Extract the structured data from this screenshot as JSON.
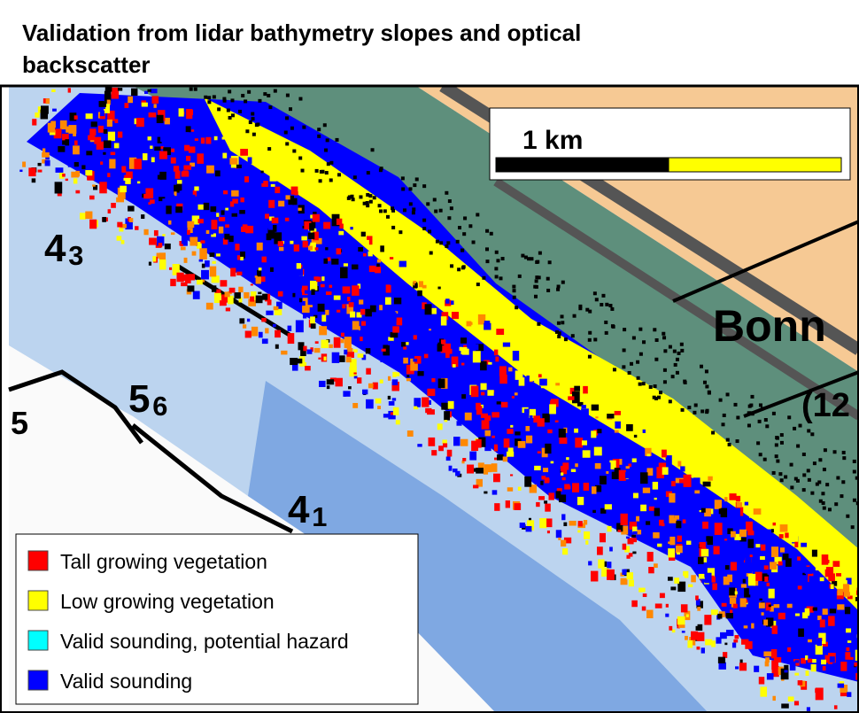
{
  "title": [
    "Validation from lidar bathymetry slopes and optical",
    "backscatter"
  ],
  "scale_bar": {
    "label": "1 km",
    "colors": [
      "#000000",
      "#ffff00"
    ]
  },
  "legend": [
    {
      "label": "Tall growing vegetation",
      "color": "#ff0000"
    },
    {
      "label": "Low growing vegetation",
      "color": "#ffff00"
    },
    {
      "label": "Valid sounding, potential hazard",
      "color": "#00ffff"
    },
    {
      "label": "Valid sounding",
      "color": "#0000ff"
    }
  ],
  "map_labels": [
    {
      "main": "4",
      "sub": "3"
    },
    {
      "main": "5",
      "sub": "6"
    },
    {
      "main": "4",
      "sub": "1"
    },
    {
      "main": "5",
      "sub": ""
    },
    {
      "main": "Bonn",
      "sub": ""
    },
    {
      "main": "(12",
      "sub": ""
    }
  ]
}
